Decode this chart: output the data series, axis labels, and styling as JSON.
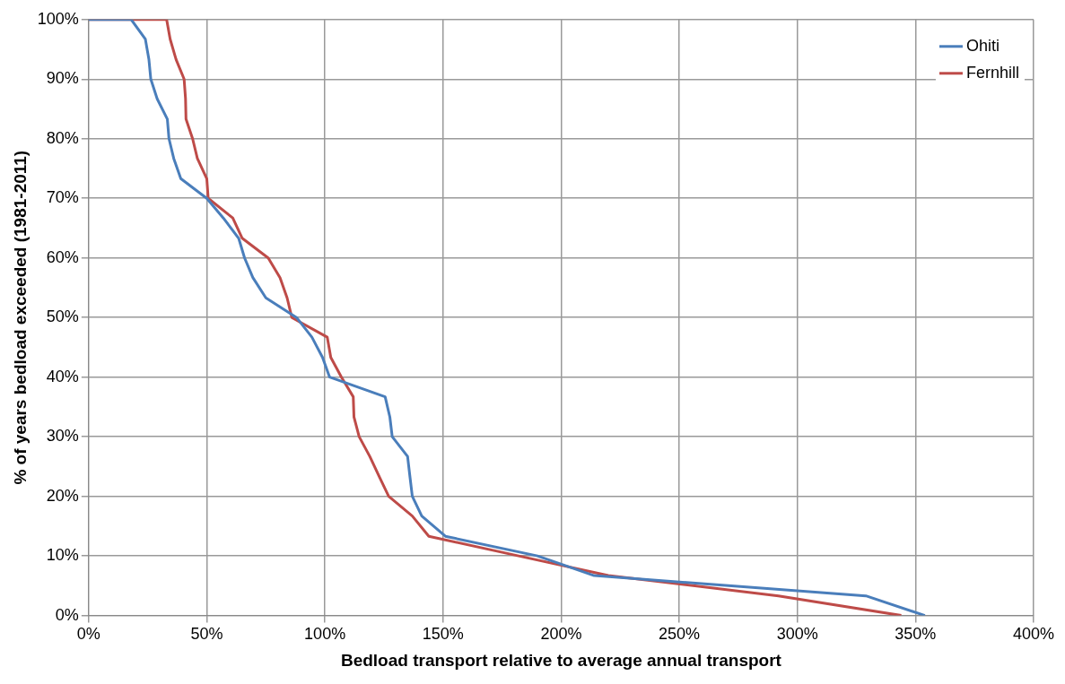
{
  "chart_data": {
    "type": "line",
    "xlabel": "Bedload transport relative to average annual transport",
    "ylabel": "% of years bedload exceeded (1981-2011)",
    "xlim": [
      0,
      400
    ],
    "xticks": [
      {
        "value": 0,
        "label": "0%"
      },
      {
        "value": 50,
        "label": "50%"
      },
      {
        "value": 100,
        "label": "100%"
      },
      {
        "value": 150,
        "label": "150%"
      },
      {
        "value": 200,
        "label": "200%"
      },
      {
        "value": 250,
        "label": "250%"
      },
      {
        "value": 300,
        "label": "300%"
      },
      {
        "value": 350,
        "label": "350%"
      },
      {
        "value": 400,
        "label": "400%"
      }
    ],
    "ylim": [
      0,
      100
    ],
    "yticks": [
      {
        "value": 0,
        "label": "0%"
      },
      {
        "value": 10,
        "label": "10%"
      },
      {
        "value": 20,
        "label": "20%"
      },
      {
        "value": 30,
        "label": "30%"
      },
      {
        "value": 40,
        "label": "40%"
      },
      {
        "value": 50,
        "label": "50%"
      },
      {
        "value": 60,
        "label": "60%"
      },
      {
        "value": 70,
        "label": "70%"
      },
      {
        "value": 80,
        "label": "80%"
      },
      {
        "value": 90,
        "label": "90%"
      },
      {
        "value": 100,
        "label": "100%"
      }
    ],
    "grid": true,
    "legend": "top right",
    "marker": "none",
    "line_style": "solid",
    "series": [
      {
        "name": "Ohiti",
        "color": "#4a7ebb",
        "x": [
          0,
          18,
          24,
          25.5,
          26.3,
          29,
          33.3,
          34,
          36,
          39,
          50,
          57,
          63.5,
          66,
          69.5,
          75,
          88,
          94.5,
          99,
          102,
          125.5,
          127.5,
          128.5,
          135,
          136,
          137,
          141,
          151,
          190,
          214,
          329,
          354
        ],
        "values": [
          100,
          100,
          96.7,
          93.3,
          90,
          86.7,
          83.3,
          80,
          76.7,
          73.3,
          70,
          66.7,
          63.3,
          60,
          56.7,
          53.3,
          50,
          46.7,
          43.3,
          40,
          36.7,
          33.3,
          30,
          26.7,
          23.3,
          20,
          16.7,
          13.3,
          10,
          6.7,
          3.3,
          0
        ]
      },
      {
        "name": "Fernhill",
        "color": "#be4b48",
        "x": [
          0,
          33,
          34.5,
          37,
          40.4,
          41,
          41.2,
          44,
          46,
          50,
          50.6,
          61,
          65,
          76,
          81,
          84,
          86,
          101,
          102.5,
          107,
          112,
          112.3,
          114.5,
          119,
          123,
          127,
          137,
          144,
          182,
          220,
          292,
          344
        ],
        "values": [
          100,
          100,
          96.7,
          93.3,
          90,
          86.7,
          83.3,
          80,
          76.7,
          73.3,
          70,
          66.7,
          63.3,
          60,
          56.7,
          53.3,
          50,
          46.7,
          43.3,
          40,
          36.7,
          33.3,
          30,
          26.7,
          23.3,
          20,
          16.7,
          13.3,
          10,
          6.7,
          3.3,
          0
        ]
      }
    ]
  }
}
